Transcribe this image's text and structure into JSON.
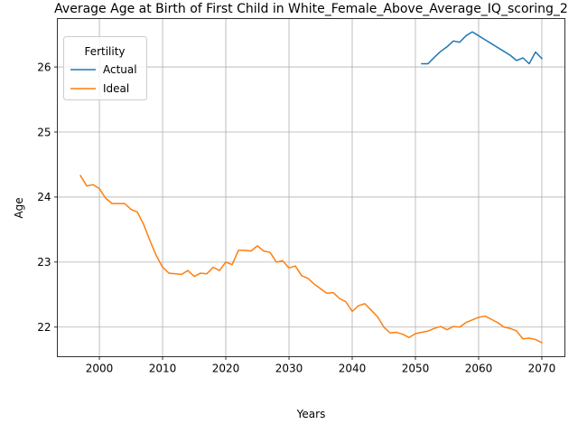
{
  "chart_data": {
    "type": "line",
    "title": "Average Age at Birth of First Child in White_Female_Above_Average_IQ_scoring_2",
    "xlabel": "Years",
    "ylabel": "Age",
    "xlim": [
      1993.35,
      2073.65
    ],
    "ylim": [
      21.545,
      26.745
    ],
    "xticks": [
      2000,
      2010,
      2020,
      2030,
      2040,
      2050,
      2060,
      2070
    ],
    "yticks": [
      22,
      23,
      24,
      25,
      26
    ],
    "grid": true,
    "legend": {
      "title": "Fertility",
      "placement": "upper-left"
    },
    "series": [
      {
        "name": "Actual",
        "color": "#1f77b4",
        "x": [
          2051,
          2052,
          2053,
          2054,
          2055,
          2056,
          2057,
          2058,
          2059,
          2060,
          2061,
          2062,
          2063,
          2064,
          2065,
          2066,
          2067,
          2068,
          2069,
          2070
        ],
        "values": [
          26.05,
          26.05,
          26.15,
          26.24,
          26.31,
          26.4,
          26.38,
          26.48,
          26.54,
          26.48,
          26.42,
          26.36,
          26.3,
          26.24,
          26.18,
          26.1,
          26.14,
          26.05,
          26.23,
          26.13
        ]
      },
      {
        "name": "Ideal",
        "color": "#ff7f0e",
        "x": [
          1997,
          1998,
          1999,
          2000,
          2001,
          2002,
          2003,
          2004,
          2005,
          2006,
          2007,
          2008,
          2009,
          2010,
          2011,
          2012,
          2013,
          2014,
          2015,
          2016,
          2017,
          2018,
          2019,
          2020,
          2021,
          2022,
          2023,
          2024,
          2025,
          2026,
          2027,
          2028,
          2029,
          2030,
          2031,
          2032,
          2033,
          2034,
          2035,
          2036,
          2037,
          2038,
          2039,
          2040,
          2041,
          2042,
          2043,
          2044,
          2045,
          2046,
          2047,
          2048,
          2049,
          2050,
          2051,
          2052,
          2053,
          2054,
          2055,
          2056,
          2057,
          2058,
          2059,
          2060,
          2061,
          2062,
          2063,
          2064,
          2065,
          2066,
          2067,
          2068,
          2069,
          2070
        ],
        "values": [
          24.33,
          24.17,
          24.19,
          24.13,
          23.98,
          23.9,
          23.9,
          23.9,
          23.81,
          23.77,
          23.58,
          23.33,
          23.1,
          22.92,
          22.83,
          22.82,
          22.81,
          22.87,
          22.78,
          22.83,
          22.82,
          22.92,
          22.87,
          23.0,
          22.96,
          23.18,
          23.18,
          23.17,
          23.25,
          23.17,
          23.15,
          23.0,
          23.02,
          22.91,
          22.94,
          22.79,
          22.75,
          22.66,
          22.59,
          22.52,
          22.53,
          22.44,
          22.39,
          22.24,
          22.33,
          22.36,
          22.26,
          22.16,
          22.0,
          21.91,
          21.92,
          21.89,
          21.84,
          21.9,
          21.92,
          21.94,
          21.98,
          22.01,
          21.96,
          22.01,
          22.0,
          22.07,
          22.11,
          22.15,
          22.17,
          22.12,
          22.07,
          22.0,
          21.98,
          21.94,
          21.82,
          21.83,
          21.81,
          21.76
        ]
      }
    ]
  }
}
